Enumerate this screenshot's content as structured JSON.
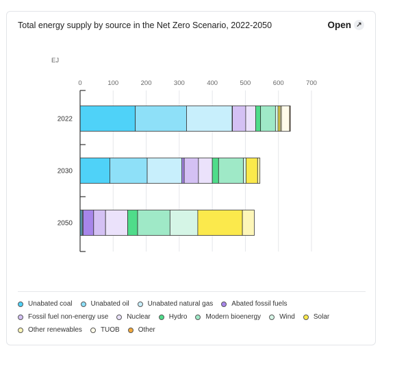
{
  "header": {
    "title": "Total energy supply by source in the Net Zero Scenario, 2022-2050",
    "open_label": "Open",
    "open_icon": "expand-arrow-icon"
  },
  "chart_data": {
    "type": "bar",
    "orientation": "horizontal",
    "stacked": true,
    "unit": "EJ",
    "xlim": [
      0,
      700
    ],
    "xticks": [
      "0",
      "100",
      "200",
      "300",
      "400",
      "500",
      "600",
      "700"
    ],
    "categories": [
      "2022",
      "2030",
      "2050"
    ],
    "grid": true,
    "legend_position": "bottom",
    "series": [
      {
        "name": "Unabated coal",
        "color": "#4fd2f8",
        "values": [
          167,
          90,
          4
        ]
      },
      {
        "name": "Unabated oil",
        "color": "#8ee0f8",
        "values": [
          155,
          113,
          3
        ]
      },
      {
        "name": "Unabated natural gas",
        "color": "#c8effc",
        "values": [
          138,
          105,
          2
        ]
      },
      {
        "name": "Abated fossil fuels",
        "color": "#a786ea",
        "values": [
          1,
          7,
          32
        ]
      },
      {
        "name": "Fossil fuel non-energy use",
        "color": "#d4c1f4",
        "values": [
          40,
          43,
          36
        ]
      },
      {
        "name": "Nuclear",
        "color": "#ebe2fb",
        "values": [
          30,
          42,
          67
        ]
      },
      {
        "name": "Hydro",
        "color": "#4fdc8a",
        "values": [
          15,
          19,
          30
        ]
      },
      {
        "name": "Modern bioenergy",
        "color": "#9fe9c7",
        "values": [
          45,
          75,
          98
        ]
      },
      {
        "name": "Wind",
        "color": "#d5f5e6",
        "values": [
          8,
          8,
          84
        ]
      },
      {
        "name": "Solar",
        "color": "#fbe94c",
        "values": [
          6,
          35,
          135
        ]
      },
      {
        "name": "Other renewables",
        "color": "#fdf6b8",
        "values": [
          4,
          7,
          36
        ]
      },
      {
        "name": "TUOB",
        "color": "#fffbea",
        "values": [
          25,
          0,
          0
        ]
      },
      {
        "name": "Other",
        "color": "#f3a93c",
        "values": [
          2,
          0,
          0
        ]
      }
    ]
  }
}
